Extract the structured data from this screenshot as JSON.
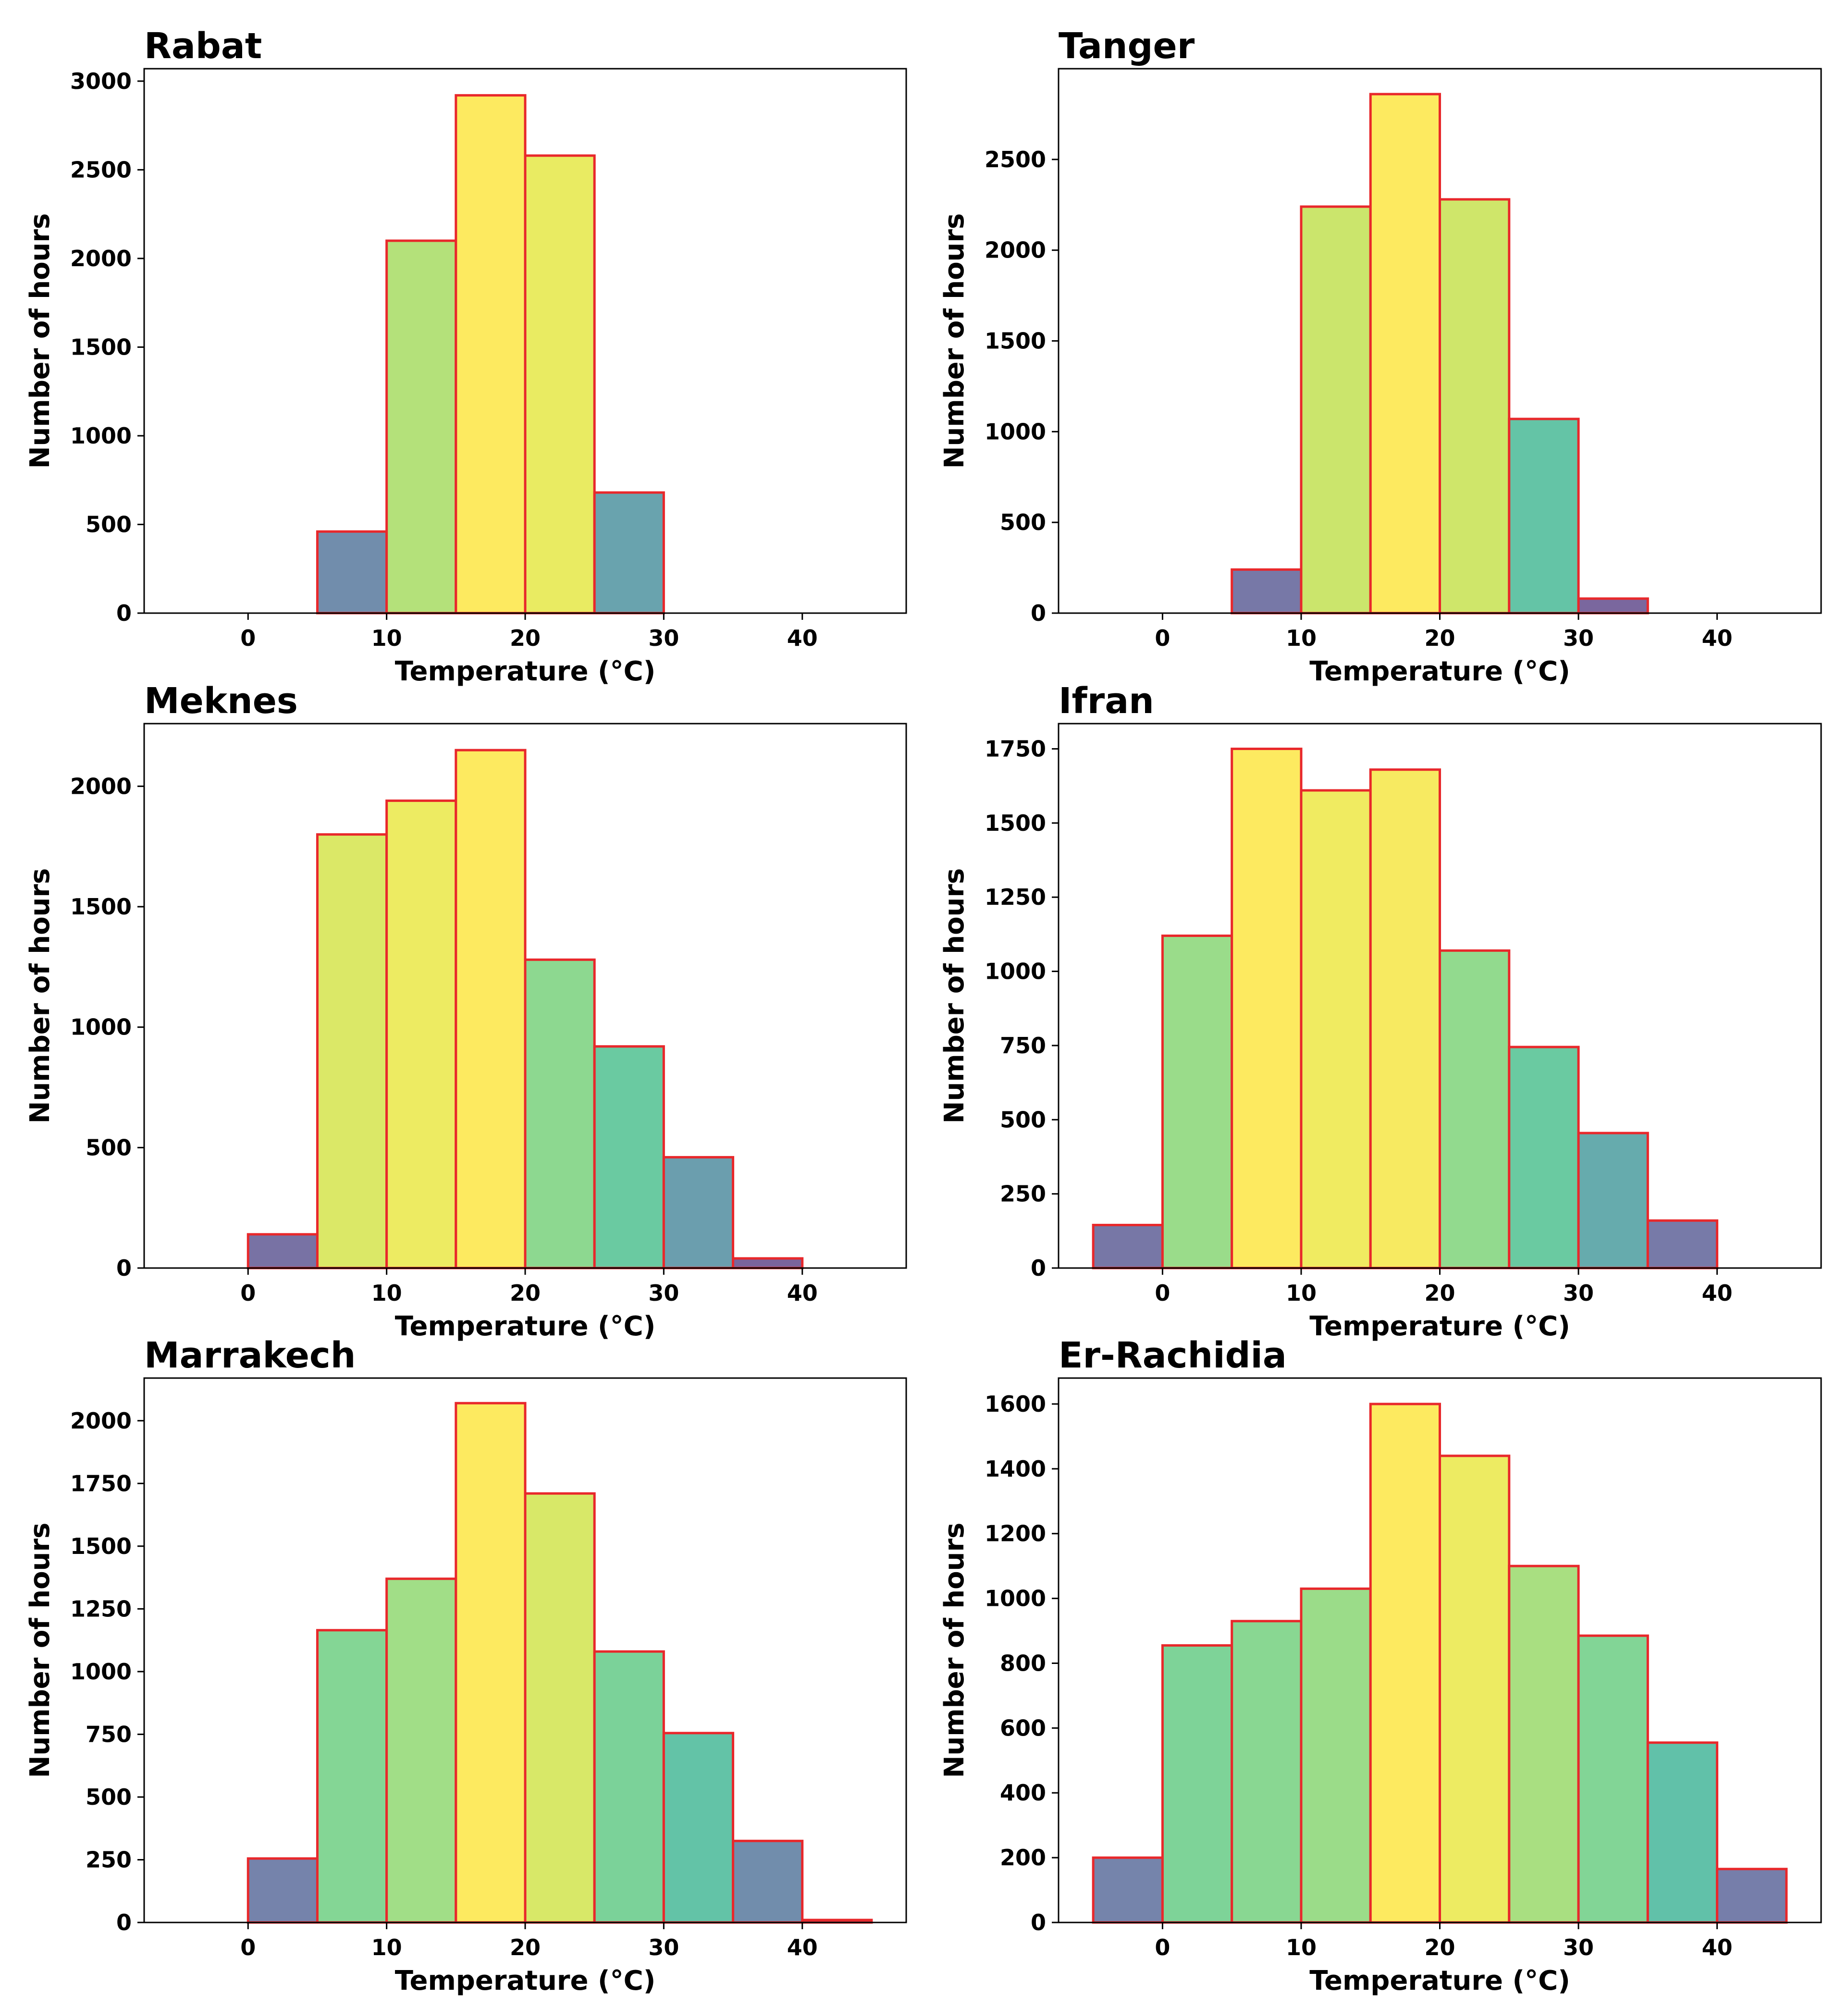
{
  "figure_type": "histogram grid",
  "colors": {
    "bar_edge": "#e8282b",
    "palette_low": "#7c5d98",
    "palette_high": "#fde95f"
  },
  "chart_data": [
    {
      "type": "bar",
      "title": "Rabat",
      "xlabel": "Temperature (°C)",
      "ylabel": "Number of hours",
      "bin_width": 5,
      "bin_starts": [
        5,
        10,
        15,
        20,
        25
      ],
      "values": [
        460,
        2100,
        2920,
        2580,
        680
      ],
      "xlim": [
        -7.5,
        47.5
      ],
      "ylim": [
        0,
        3070
      ],
      "xticks": [
        0,
        10,
        20,
        30,
        40
      ],
      "yticks": [
        0,
        500,
        1000,
        1500,
        2000,
        2500,
        3000
      ]
    },
    {
      "type": "bar",
      "title": "Tanger",
      "xlabel": "Temperature (°C)",
      "ylabel": "Number of hours",
      "bin_width": 5,
      "bin_starts": [
        5,
        10,
        15,
        20,
        25,
        30
      ],
      "values": [
        240,
        2240,
        2860,
        2280,
        1070,
        80
      ],
      "xlim": [
        -7.5,
        47.5
      ],
      "ylim": [
        0,
        3000
      ],
      "xticks": [
        0,
        10,
        20,
        30,
        40
      ],
      "yticks": [
        0,
        500,
        1000,
        1500,
        2000,
        2500
      ]
    },
    {
      "type": "bar",
      "title": "Meknes",
      "xlabel": "Temperature (°C)",
      "ylabel": "Number of hours",
      "bin_width": 5,
      "bin_starts": [
        0,
        5,
        10,
        15,
        20,
        25,
        30,
        35
      ],
      "values": [
        140,
        1800,
        1940,
        2150,
        1280,
        920,
        460,
        40
      ],
      "xlim": [
        -7.5,
        47.5
      ],
      "ylim": [
        0,
        2260
      ],
      "xticks": [
        0,
        10,
        20,
        30,
        40
      ],
      "yticks": [
        0,
        500,
        1000,
        1500,
        2000
      ]
    },
    {
      "type": "bar",
      "title": "Ifran",
      "xlabel": "Temperature (°C)",
      "ylabel": "Number of hours",
      "bin_width": 5,
      "bin_starts": [
        -5,
        0,
        5,
        10,
        15,
        20,
        25,
        30,
        35
      ],
      "values": [
        145,
        1120,
        1750,
        1610,
        1680,
        1070,
        745,
        455,
        160
      ],
      "xlim": [
        -7.5,
        47.5
      ],
      "ylim": [
        0,
        1835
      ],
      "xticks": [
        0,
        10,
        20,
        30,
        40
      ],
      "yticks": [
        0,
        250,
        500,
        750,
        1000,
        1250,
        1500,
        1750
      ]
    },
    {
      "type": "bar",
      "title": "Marrakech",
      "xlabel": "Temperature (°C)",
      "ylabel": "Number of hours",
      "bin_width": 5,
      "bin_starts": [
        0,
        5,
        10,
        15,
        20,
        25,
        30,
        35,
        40
      ],
      "values": [
        255,
        1165,
        1370,
        2070,
        1710,
        1080,
        755,
        325,
        10
      ],
      "xlim": [
        -7.5,
        47.5
      ],
      "ylim": [
        0,
        2170
      ],
      "xticks": [
        0,
        10,
        20,
        30,
        40
      ],
      "yticks": [
        0,
        250,
        500,
        750,
        1000,
        1250,
        1500,
        1750,
        2000
      ]
    },
    {
      "type": "bar",
      "title": "Er-Rachidia",
      "xlabel": "Temperature (°C)",
      "ylabel": "Number of hours",
      "bin_width": 5,
      "bin_starts": [
        -5,
        0,
        5,
        10,
        15,
        20,
        25,
        30,
        35,
        40
      ],
      "values": [
        200,
        855,
        930,
        1030,
        1600,
        1440,
        1100,
        885,
        555,
        165
      ],
      "xlim": [
        -7.5,
        47.5
      ],
      "ylim": [
        0,
        1680
      ],
      "xticks": [
        0,
        10,
        20,
        30,
        40
      ],
      "yticks": [
        0,
        200,
        400,
        600,
        800,
        1000,
        1200,
        1400,
        1600
      ]
    }
  ]
}
